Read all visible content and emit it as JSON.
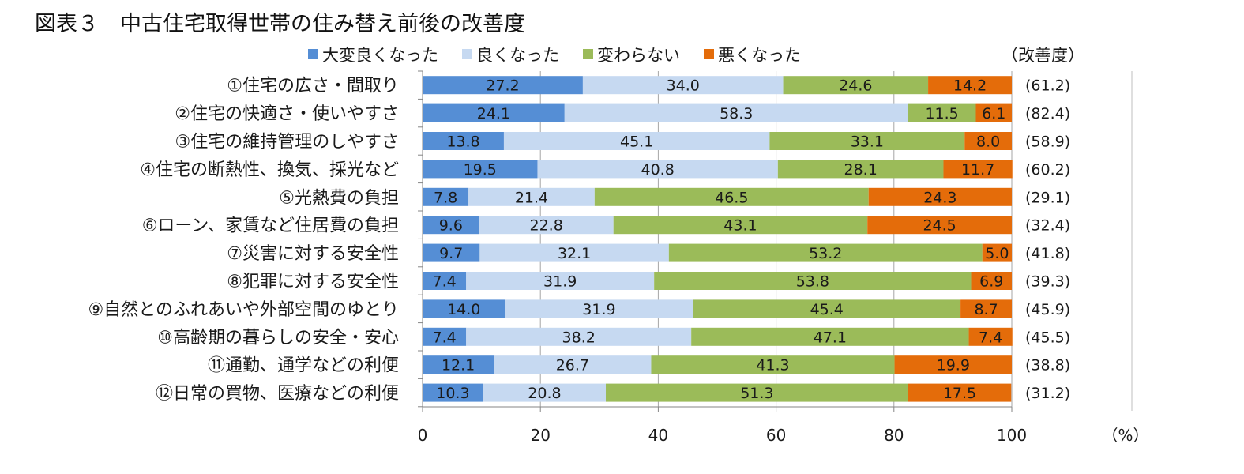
{
  "title": "図表３　中古住宅取得世帯の住み替え前後の改善度",
  "chart_data": {
    "type": "bar",
    "orientation": "horizontal",
    "stacked": true,
    "title": "図表３　中古住宅取得世帯の住み替え前後の改善度",
    "categories": [
      "①住宅の広さ・間取り",
      "②住宅の快適さ・使いやすさ",
      "③住宅の維持管理のしやすさ",
      "④住宅の断熱性、換気、採光など",
      "⑤光熱費の負担",
      "⑥ローン、家賃など住居費の負担",
      "⑦災害に対する安全性",
      "⑧犯罪に対する安全性",
      "⑨自然とのふれあいや外部空間のゆとり",
      "⑩高齢期の暮らしの安全・安心",
      "⑪通勤、通学などの利便",
      "⑫日常の買物、医療などの利便"
    ],
    "series": [
      {
        "name": "大変良くなった",
        "color": "#558ED5",
        "values": [
          27.2,
          24.1,
          13.8,
          19.5,
          7.8,
          9.6,
          9.7,
          7.4,
          14.0,
          7.4,
          12.1,
          10.3
        ]
      },
      {
        "name": "良くなった",
        "color": "#C6D9F1",
        "values": [
          34.0,
          58.3,
          45.1,
          40.8,
          21.4,
          22.8,
          32.1,
          31.9,
          31.9,
          38.2,
          26.7,
          20.8
        ]
      },
      {
        "name": "変わらない",
        "color": "#9BBB59",
        "values": [
          24.6,
          11.5,
          33.1,
          28.1,
          46.5,
          43.1,
          53.2,
          53.8,
          45.4,
          47.1,
          41.3,
          51.3
        ]
      },
      {
        "name": "悪くなった",
        "color": "#E46C0A",
        "values": [
          14.2,
          6.1,
          8.0,
          11.7,
          24.3,
          24.5,
          5.0,
          6.9,
          8.7,
          7.4,
          19.9,
          17.5
        ]
      }
    ],
    "improvement_header": "（改善度）",
    "improvement": [
      "(61.2)",
      "(82.4)",
      "(58.9)",
      "(60.2)",
      "(29.1)",
      "(32.4)",
      "(41.8)",
      "(39.3)",
      "(45.9)",
      "(45.5)",
      "(38.8)",
      "(31.2)"
    ],
    "xlim": [
      0,
      100
    ],
    "xticks": [
      "0",
      "20",
      "40",
      "60",
      "80",
      "100"
    ],
    "xunit": "（%）",
    "grid": true,
    "legend_position": "top"
  }
}
